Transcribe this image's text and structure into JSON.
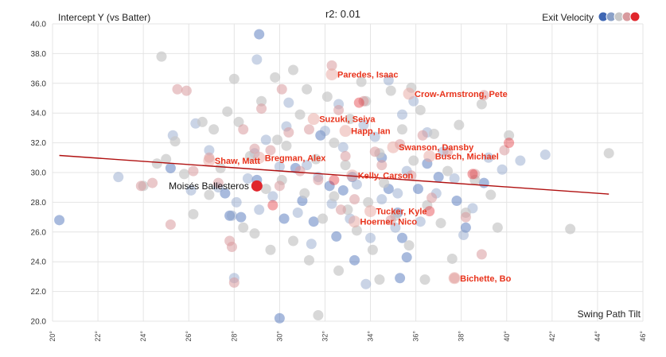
{
  "chart_data": {
    "type": "scatter",
    "title": "r2: 0.01",
    "xlabel": "Swing Path Tilt",
    "ylabel": "Intercept Y (vs Batter)",
    "legend_label": "Exit Velocity",
    "legend_position": "top-right",
    "legend_colors": [
      "#3e66b3",
      "#8aa0c7",
      "#c8c8c8",
      "#d89a9e",
      "#e0262c"
    ],
    "xlim": [
      20,
      46
    ],
    "ylim": [
      20,
      40
    ],
    "x_ticks": [
      "20°",
      "22°",
      "24°",
      "26°",
      "28°",
      "30°",
      "32°",
      "34°",
      "36°",
      "38°",
      "40°",
      "42°",
      "44°",
      "46°"
    ],
    "y_ticks": [
      "20.0",
      "22.0",
      "24.0",
      "26.0",
      "28.0",
      "30.0",
      "32.0",
      "34.0",
      "36.0",
      "38.0",
      "40.0"
    ],
    "trendline": {
      "x": [
        20.3,
        44.5
      ],
      "y": [
        31.15,
        28.55
      ],
      "color": "#b01010"
    },
    "highlight": {
      "name": "Moisés Ballesteros",
      "x": 29.0,
      "y": 29.1,
      "color": "#e0262c"
    },
    "labeled_points": [
      {
        "name": "Paredes, Isaac",
        "x": 32.3,
        "y": 36.6
      },
      {
        "name": "Crow-Armstrong, Pete",
        "x": 35.7,
        "y": 35.3
      },
      {
        "name": "Suzuki, Seiya",
        "x": 31.5,
        "y": 33.6
      },
      {
        "name": "Happ, Ian",
        "x": 32.9,
        "y": 32.8
      },
      {
        "name": "Swanson, Dansby",
        "x": 35.0,
        "y": 31.7
      },
      {
        "name": "Busch, Michael",
        "x": 36.6,
        "y": 31.1
      },
      {
        "name": "Bregman, Alex",
        "x": 29.1,
        "y": 31.0
      },
      {
        "name": "Shaw, Matt",
        "x": 26.9,
        "y": 30.8
      },
      {
        "name": "Kelly, Carson",
        "x": 33.2,
        "y": 29.8
      },
      {
        "name": "Tucker, Kyle",
        "x": 34.0,
        "y": 27.4
      },
      {
        "name": "Hoerner, Nico",
        "x": 33.3,
        "y": 26.7
      },
      {
        "name": "Bichette, Bo",
        "x": 37.7,
        "y": 22.9
      }
    ],
    "series": [
      {
        "name": "blue",
        "color": "#3e66b3",
        "opacity": 0.45,
        "points": [
          [
            20.3,
            26.8
          ],
          [
            25.2,
            30.3
          ],
          [
            27.6,
            28.6
          ],
          [
            27.8,
            27.1
          ],
          [
            28.3,
            27.0
          ],
          [
            29.0,
            29.5
          ],
          [
            30.2,
            26.9
          ],
          [
            30.7,
            30.3
          ],
          [
            31.0,
            28.1
          ],
          [
            31.5,
            26.7
          ],
          [
            32.2,
            29.1
          ],
          [
            32.5,
            25.7
          ],
          [
            32.8,
            28.8
          ],
          [
            33.2,
            29.7
          ],
          [
            33.3,
            24.1
          ],
          [
            34.5,
            31.0
          ],
          [
            34.8,
            28.9
          ],
          [
            35.2,
            27.3
          ],
          [
            35.4,
            25.6
          ],
          [
            35.6,
            24.3
          ],
          [
            36.1,
            28.9
          ],
          [
            36.5,
            30.6
          ],
          [
            37.0,
            29.7
          ],
          [
            37.8,
            28.1
          ],
          [
            38.2,
            26.3
          ],
          [
            39.0,
            29.3
          ],
          [
            30.0,
            20.2
          ],
          [
            29.1,
            39.3
          ],
          [
            35.3,
            22.9
          ],
          [
            31.8,
            32.5
          ]
        ]
      },
      {
        "name": "lightblue",
        "color": "#8aa0c7",
        "opacity": 0.45,
        "points": [
          [
            22.9,
            29.7
          ],
          [
            25.3,
            32.5
          ],
          [
            26.1,
            28.8
          ],
          [
            26.3,
            33.3
          ],
          [
            26.9,
            31.5
          ],
          [
            27.3,
            29.0
          ],
          [
            27.9,
            27.1
          ],
          [
            28.1,
            28.0
          ],
          [
            28.6,
            29.6
          ],
          [
            28.9,
            31.3
          ],
          [
            29.1,
            27.5
          ],
          [
            29.4,
            32.2
          ],
          [
            29.7,
            28.4
          ],
          [
            30.0,
            30.4
          ],
          [
            30.3,
            33.1
          ],
          [
            30.8,
            27.3
          ],
          [
            31.2,
            30.5
          ],
          [
            31.4,
            25.2
          ],
          [
            31.7,
            29.7
          ],
          [
            32.0,
            32.8
          ],
          [
            32.3,
            27.9
          ],
          [
            32.6,
            34.6
          ],
          [
            32.8,
            31.7
          ],
          [
            33.1,
            26.9
          ],
          [
            33.4,
            29.2
          ],
          [
            33.7,
            33.2
          ],
          [
            34.0,
            25.6
          ],
          [
            34.2,
            32.4
          ],
          [
            34.5,
            28.2
          ],
          [
            34.8,
            36.2
          ],
          [
            35.1,
            26.3
          ],
          [
            35.4,
            33.9
          ],
          [
            35.6,
            30.1
          ],
          [
            35.9,
            34.8
          ],
          [
            36.2,
            26.7
          ],
          [
            36.5,
            32.7
          ],
          [
            36.9,
            28.6
          ],
          [
            37.2,
            31.4
          ],
          [
            37.7,
            29.6
          ],
          [
            38.1,
            25.8
          ],
          [
            38.5,
            27.6
          ],
          [
            39.2,
            31.0
          ],
          [
            39.8,
            30.2
          ],
          [
            40.6,
            30.8
          ],
          [
            41.7,
            31.2
          ],
          [
            28.0,
            22.9
          ],
          [
            29.0,
            37.6
          ],
          [
            33.8,
            22.5
          ],
          [
            35.2,
            28.6
          ],
          [
            30.4,
            34.7
          ]
        ]
      },
      {
        "name": "gray",
        "color": "#c8c8c8",
        "opacity": 0.7,
        "points": [
          [
            24.0,
            29.1
          ],
          [
            24.6,
            30.6
          ],
          [
            24.8,
            37.8
          ],
          [
            25.0,
            30.9
          ],
          [
            25.4,
            32.1
          ],
          [
            25.8,
            29.9
          ],
          [
            26.2,
            27.2
          ],
          [
            26.6,
            33.4
          ],
          [
            26.9,
            28.5
          ],
          [
            27.1,
            32.9
          ],
          [
            27.4,
            30.3
          ],
          [
            27.7,
            34.1
          ],
          [
            28.0,
            36.3
          ],
          [
            28.2,
            33.4
          ],
          [
            28.4,
            26.3
          ],
          [
            28.7,
            31.1
          ],
          [
            28.9,
            25.9
          ],
          [
            29.2,
            34.8
          ],
          [
            29.4,
            28.9
          ],
          [
            29.6,
            24.8
          ],
          [
            29.8,
            36.4
          ],
          [
            30.1,
            29.5
          ],
          [
            30.3,
            31.8
          ],
          [
            30.6,
            25.4
          ],
          [
            30.9,
            33.9
          ],
          [
            31.1,
            28.6
          ],
          [
            31.3,
            24.1
          ],
          [
            31.6,
            30.9
          ],
          [
            31.9,
            26.9
          ],
          [
            32.1,
            35.1
          ],
          [
            32.4,
            28.4
          ],
          [
            32.6,
            23.4
          ],
          [
            32.9,
            30.5
          ],
          [
            33.1,
            33.6
          ],
          [
            33.4,
            26.1
          ],
          [
            33.6,
            36.1
          ],
          [
            33.9,
            28.0
          ],
          [
            34.1,
            24.8
          ],
          [
            34.4,
            31.3
          ],
          [
            34.6,
            29.3
          ],
          [
            34.9,
            35.5
          ],
          [
            35.1,
            27.1
          ],
          [
            35.4,
            32.9
          ],
          [
            35.7,
            25.1
          ],
          [
            35.9,
            30.8
          ],
          [
            36.2,
            34.2
          ],
          [
            36.5,
            27.8
          ],
          [
            36.8,
            32.6
          ],
          [
            37.1,
            26.6
          ],
          [
            37.4,
            30.1
          ],
          [
            37.6,
            24.2
          ],
          [
            37.9,
            33.2
          ],
          [
            38.2,
            27.3
          ],
          [
            38.6,
            29.5
          ],
          [
            38.9,
            34.6
          ],
          [
            39.3,
            28.5
          ],
          [
            39.6,
            26.3
          ],
          [
            40.1,
            32.5
          ],
          [
            42.8,
            26.2
          ],
          [
            44.5,
            31.3
          ],
          [
            31.7,
            20.4
          ],
          [
            34.4,
            22.8
          ],
          [
            36.4,
            22.8
          ],
          [
            30.6,
            36.9
          ],
          [
            32.4,
            32.0
          ],
          [
            33.0,
            27.5
          ],
          [
            35.8,
            35.7
          ],
          [
            29.9,
            32.2
          ],
          [
            31.2,
            35.6
          ],
          [
            33.8,
            34.8
          ]
        ]
      },
      {
        "name": "pink",
        "color": "#d89a9e",
        "opacity": 0.55,
        "points": [
          [
            23.9,
            29.1
          ],
          [
            24.4,
            29.3
          ],
          [
            25.2,
            26.5
          ],
          [
            25.5,
            35.6
          ],
          [
            25.9,
            35.5
          ],
          [
            26.2,
            30.1
          ],
          [
            26.9,
            31.0
          ],
          [
            27.3,
            29.3
          ],
          [
            27.9,
            25.0
          ],
          [
            28.0,
            22.6
          ],
          [
            28.4,
            32.9
          ],
          [
            28.9,
            31.6
          ],
          [
            29.2,
            34.3
          ],
          [
            29.6,
            31.5
          ],
          [
            30.1,
            35.6
          ],
          [
            30.4,
            32.7
          ],
          [
            30.9,
            30.1
          ],
          [
            31.3,
            32.9
          ],
          [
            31.7,
            29.5
          ],
          [
            32.3,
            37.2
          ],
          [
            32.6,
            34.2
          ],
          [
            32.9,
            31.1
          ],
          [
            33.3,
            28.2
          ],
          [
            33.7,
            34.8
          ],
          [
            34.2,
            31.4
          ],
          [
            34.5,
            30.5
          ],
          [
            34.9,
            26.8
          ],
          [
            35.3,
            31.9
          ],
          [
            35.8,
            29.8
          ],
          [
            36.3,
            32.5
          ],
          [
            36.7,
            28.3
          ],
          [
            37.4,
            31.4
          ],
          [
            37.7,
            22.9
          ],
          [
            38.2,
            27.0
          ],
          [
            38.6,
            29.9
          ],
          [
            38.9,
            24.5
          ],
          [
            39.0,
            35.2
          ],
          [
            39.9,
            31.5
          ],
          [
            32.7,
            27.5
          ],
          [
            30.0,
            29.1
          ],
          [
            27.8,
            25.4
          ]
        ]
      },
      {
        "name": "red",
        "color": "#e0262c",
        "opacity": 0.4,
        "points": [
          [
            33.5,
            34.7
          ],
          [
            36.6,
            27.4
          ],
          [
            38.5,
            29.9
          ],
          [
            40.1,
            32.0
          ],
          [
            32.4,
            29.5
          ],
          [
            29.7,
            27.8
          ]
        ]
      }
    ]
  }
}
